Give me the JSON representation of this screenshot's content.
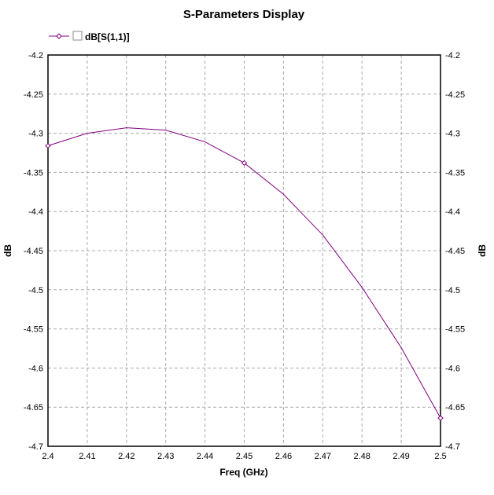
{
  "chart_data": {
    "type": "line",
    "title": "S-Parameters Display",
    "xlabel": "Freq (GHz)",
    "ylabel": "dB",
    "ylabel_right": "dB",
    "xlim": [
      2.4,
      2.5
    ],
    "ylim": [
      -4.7,
      -4.2
    ],
    "grid": true,
    "legend_position": "top-left",
    "x_ticks": [
      "2.4",
      "2.41",
      "2.42",
      "2.43",
      "2.44",
      "2.45",
      "2.46",
      "2.47",
      "2.48",
      "2.49",
      "2.5"
    ],
    "y_ticks": [
      "-4.2",
      "-4.25",
      "-4.3",
      "-4.35",
      "-4.4",
      "-4.45",
      "-4.5",
      "-4.55",
      "-4.6",
      "-4.65",
      "-4.7"
    ],
    "series": [
      {
        "name": "dB[S(1,1)]",
        "color": "#800080",
        "x": [
          2.4,
          2.41,
          2.42,
          2.43,
          2.44,
          2.45,
          2.46,
          2.47,
          2.48,
          2.49,
          2.5
        ],
        "y": [
          -4.316,
          -4.3,
          -4.293,
          -4.296,
          -4.311,
          -4.338,
          -4.378,
          -4.43,
          -4.497,
          -4.574,
          -4.664
        ],
        "markers_at": [
          2.4,
          2.45,
          2.5
        ]
      }
    ]
  }
}
